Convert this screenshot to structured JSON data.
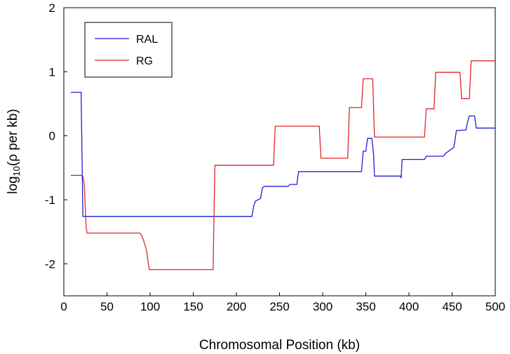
{
  "chart_data": {
    "type": "line",
    "title": "",
    "xlabel": "Chromosomal Position (kb)",
    "ylabel_main": "log",
    "ylabel_sub": "10",
    "ylabel_rest": "(ρ per kb)",
    "xlim": [
      0,
      500
    ],
    "ylim": [
      -2.5,
      2
    ],
    "x_ticks": [
      0,
      50,
      100,
      150,
      200,
      250,
      300,
      350,
      400,
      450,
      500
    ],
    "x_tick_labels": [
      "0",
      "50",
      "100",
      "150",
      "200",
      "250",
      "300",
      "350",
      "400",
      "450",
      "500"
    ],
    "y_ticks": [
      2,
      1,
      0,
      -1,
      -2
    ],
    "y_tick_labels": [
      "2",
      "1",
      "0",
      "-1",
      "-2"
    ],
    "grid": false,
    "legend_position": "top-left",
    "series": [
      {
        "name": "RAL",
        "color": "#1f1fd6",
        "x": [
          8,
          20,
          21,
          22,
          218,
          220,
          222,
          228,
          230,
          232,
          260,
          262,
          270,
          272,
          345,
          347,
          350,
          352,
          357,
          359,
          360,
          362,
          390,
          391,
          392,
          394,
          418,
          420,
          440,
          442,
          452,
          455,
          466,
          468,
          470,
          476,
          478,
          500
        ],
        "y": [
          0.68,
          0.68,
          -0.2,
          -1.26,
          -1.26,
          -1.1,
          -1.02,
          -0.98,
          -0.82,
          -0.79,
          -0.79,
          -0.76,
          -0.76,
          -0.56,
          -0.56,
          -0.24,
          -0.24,
          -0.04,
          -0.04,
          -0.3,
          -0.63,
          -0.63,
          -0.63,
          -0.66,
          -0.37,
          -0.37,
          -0.37,
          -0.32,
          -0.32,
          -0.28,
          -0.18,
          0.08,
          0.09,
          0.22,
          0.31,
          0.31,
          0.12,
          0.12
        ]
      },
      {
        "name": "RG",
        "color": "#e0252b",
        "x": [
          8,
          20,
          22,
          23,
          24,
          25,
          26,
          27,
          88,
          90,
          92,
          94,
          96,
          98,
          99,
          173,
          175,
          243,
          245,
          296,
          298,
          329,
          331,
          345,
          347,
          358,
          360,
          418,
          420,
          429,
          431,
          459,
          461,
          470,
          472,
          500
        ],
        "y": [
          -0.62,
          -0.62,
          -0.63,
          -0.7,
          -0.82,
          -1.2,
          -1.45,
          -1.52,
          -1.52,
          -1.55,
          -1.62,
          -1.7,
          -1.8,
          -2.0,
          -2.09,
          -2.09,
          -0.46,
          -0.46,
          0.15,
          0.15,
          -0.35,
          -0.35,
          0.44,
          0.44,
          0.89,
          0.89,
          -0.02,
          -0.02,
          0.42,
          0.42,
          0.99,
          0.99,
          0.58,
          0.58,
          1.17,
          1.17
        ]
      }
    ]
  }
}
